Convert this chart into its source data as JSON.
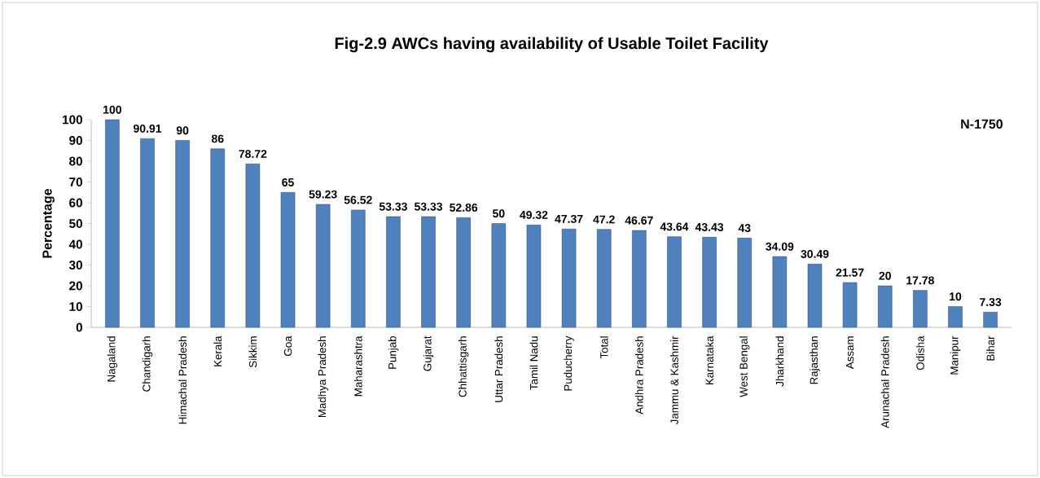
{
  "chart_data": {
    "type": "bar",
    "title": "Fig-2.9 AWCs having availability of Usable Toilet Facility",
    "ylabel": "Percentage",
    "categories": [
      "Nagaland",
      "Chandigarh",
      "Himachal Pradesh",
      "Kerala",
      "Sikkim",
      "Goa",
      "Madhya Pradesh",
      "Maharashtra",
      "Punjab",
      "Gujarat",
      "Chhattisgarh",
      "Uttar Pradesh",
      "Tamil Nadu",
      "Puducherry",
      "Total",
      "Andhra Pradesh",
      "Jammu & Kashmir",
      "Karnataka",
      "West Bengal",
      "Jharkhand",
      "Rajasthan",
      "Assam",
      "Arunachal Pradesh",
      "Odisha",
      "Manipur",
      "Bihar"
    ],
    "values": [
      100,
      90.91,
      90,
      86,
      78.72,
      65,
      59.23,
      56.52,
      53.33,
      53.33,
      52.86,
      50,
      49.32,
      47.37,
      47.2,
      46.67,
      43.64,
      43.43,
      43,
      34.09,
      30.49,
      21.57,
      20,
      17.78,
      10,
      7.33
    ],
    "color": "#4f81bd",
    "ylim": [
      0,
      100
    ],
    "yticks": [
      0,
      10,
      20,
      30,
      40,
      50,
      60,
      70,
      80,
      90,
      100
    ],
    "data_labels": true,
    "annotations": [
      "N-1750"
    ]
  }
}
